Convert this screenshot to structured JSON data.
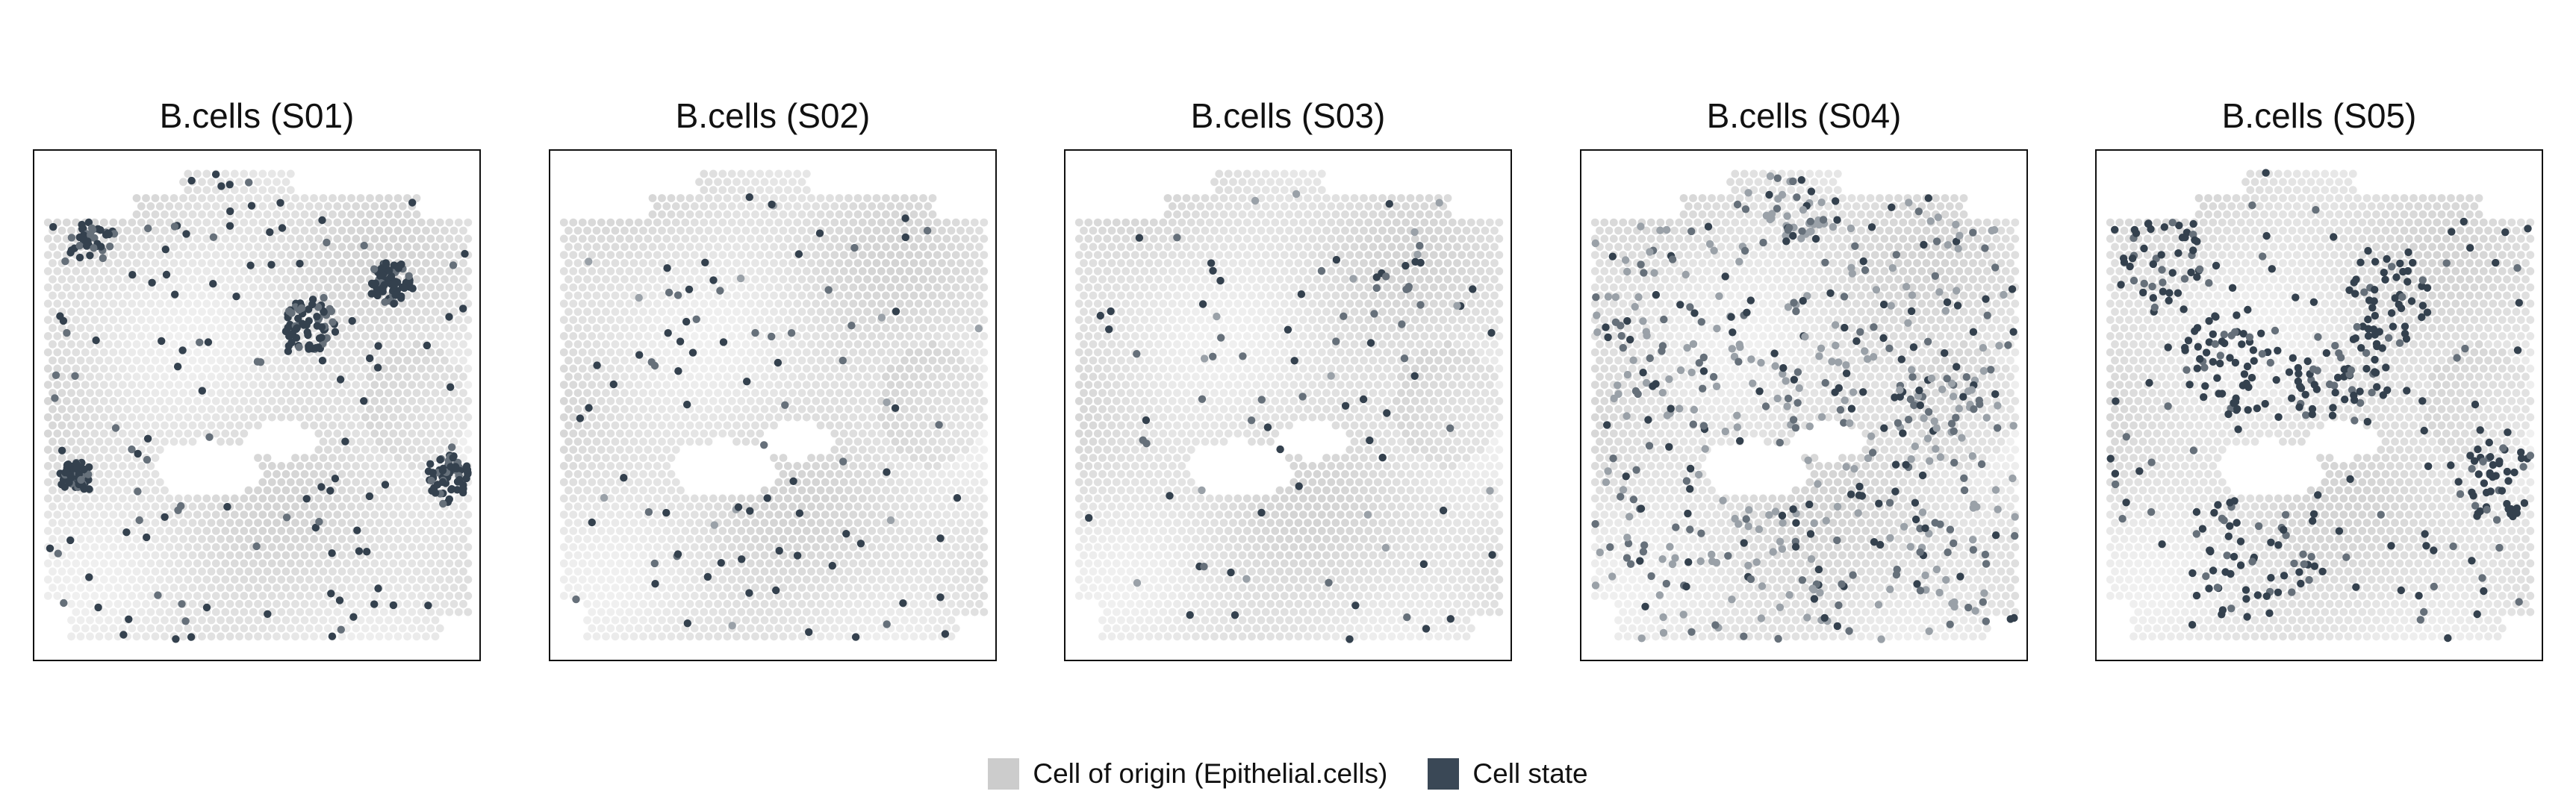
{
  "chart_data": [
    {
      "type": "scatter",
      "title": "B.cells (S01)",
      "state_intensity_level": "high",
      "state_pattern": "sparse dots concentrated in clusters on the left and right edges"
    },
    {
      "type": "scatter",
      "title": "B.cells (S02)",
      "state_intensity_level": "low",
      "state_pattern": "sparse scattered dots"
    },
    {
      "type": "scatter",
      "title": "B.cells (S03)",
      "state_intensity_level": "low",
      "state_pattern": "sparse dots, concentrated in the upper right"
    },
    {
      "type": "scatter",
      "title": "B.cells (S04)",
      "state_intensity_level": "medium",
      "state_pattern": "dense gray dots, especially in the lower part"
    },
    {
      "type": "scatter",
      "title": "B.cells (S05)",
      "state_intensity_level": "high",
      "state_pattern": "dense dark clusters throughout"
    }
  ],
  "legend": {
    "placement": "bottom-center",
    "items": [
      {
        "label": "Cell of origin (Epithelial.cells)",
        "color": "#cccccc"
      },
      {
        "label": "Cell state",
        "color": "#3a4856"
      }
    ]
  },
  "colors": {
    "background_spot": "#d8d8d8",
    "state_dark": "#34414e",
    "state_mid": "#66707a",
    "frame": "#111111"
  }
}
